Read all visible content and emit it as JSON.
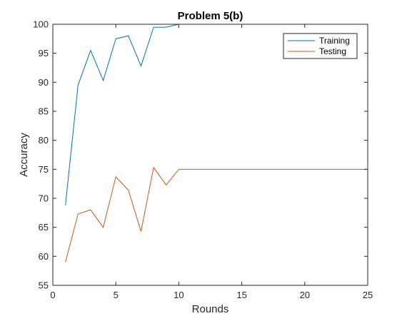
{
  "chart_data": {
    "type": "line",
    "title": "Problem 5(b)",
    "xlabel": "Rounds",
    "ylabel": "Accuracy",
    "xlim": [
      0,
      25
    ],
    "ylim": [
      55,
      100
    ],
    "xticks": [
      "0",
      "5",
      "10",
      "15",
      "20",
      "25"
    ],
    "yticks": [
      "55",
      "60",
      "65",
      "70",
      "75",
      "80",
      "85",
      "90",
      "95",
      "100"
    ],
    "grid": false,
    "legend_position": "top-right",
    "x": [
      1,
      2,
      3,
      4,
      5,
      6,
      7,
      8,
      9,
      10,
      11,
      12,
      13,
      14,
      15,
      16,
      17,
      18,
      19,
      20,
      21,
      22,
      23,
      24,
      25
    ],
    "series": [
      {
        "name": "Training",
        "color": "#0072bd",
        "values": [
          68.8,
          89.5,
          95.5,
          90.3,
          97.5,
          98.0,
          92.8,
          99.5,
          99.5,
          100,
          100,
          100,
          100,
          100,
          100,
          100,
          100,
          100,
          100,
          100,
          100,
          100,
          100,
          100,
          100
        ]
      },
      {
        "name": "Testing",
        "color": "#d95319",
        "values": [
          59.0,
          67.3,
          68.0,
          65.0,
          73.7,
          71.4,
          64.3,
          75.3,
          72.3,
          75.0,
          75.0,
          75.0,
          75.0,
          75.0,
          75.0,
          75.0,
          75.0,
          75.0,
          75.0,
          75.0,
          75.0,
          75.0,
          75.0,
          75.0,
          75.0
        ]
      }
    ]
  }
}
